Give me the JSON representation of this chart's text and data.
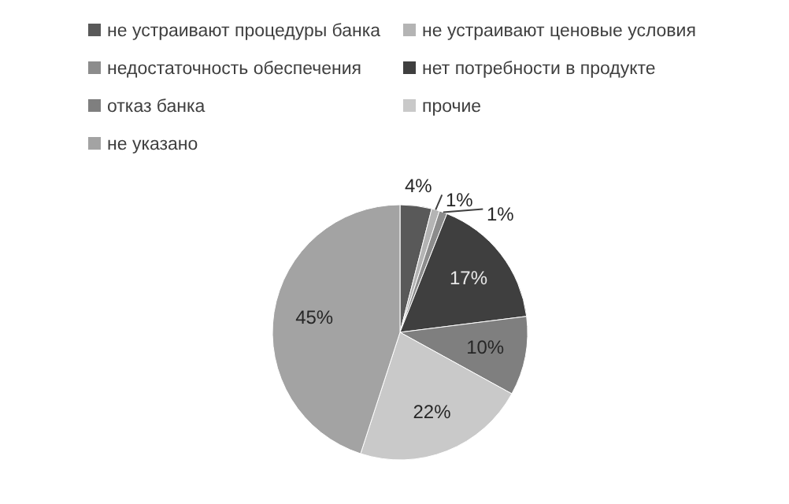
{
  "chart_data": {
    "type": "pie",
    "categories": [
      "не устраивают процедуры банка",
      "не устраивают ценовые условия",
      "недостаточность обеспечения",
      "нет потребности в продукте",
      "отказ банка",
      "прочие",
      "не указано"
    ],
    "values": [
      4,
      1,
      1,
      17,
      10,
      22,
      45
    ],
    "colors": [
      "#595959",
      "#b4b4b4",
      "#8c8c8c",
      "#3f3f3f",
      "#7f7f7f",
      "#c9c9c9",
      "#a3a3a3"
    ],
    "value_labels": [
      "4%",
      "1%",
      "1%",
      "17%",
      "10%",
      "22%",
      "45%"
    ],
    "legend": "top"
  }
}
